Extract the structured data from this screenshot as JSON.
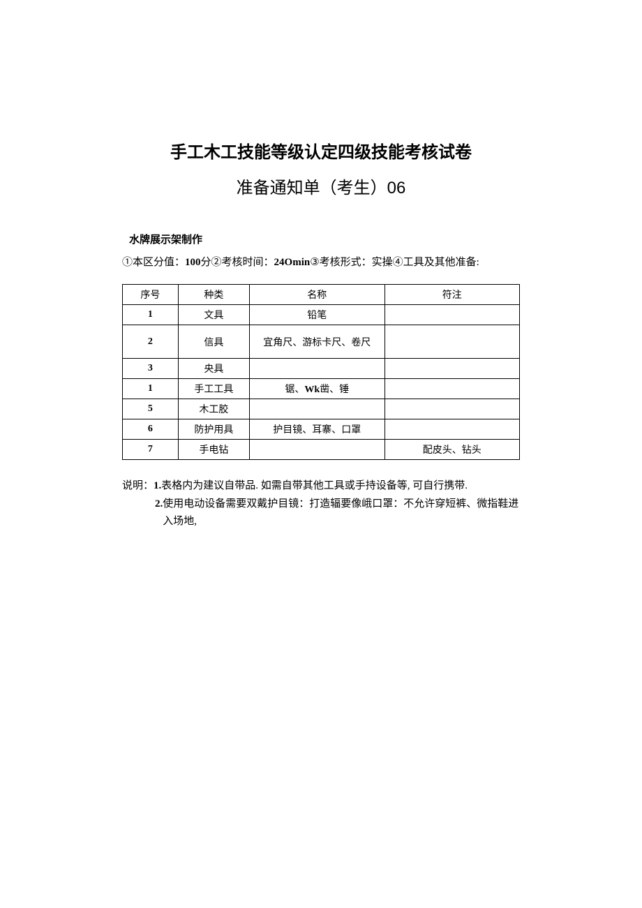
{
  "title": {
    "line1": "手工木工技能等级认定四级技能考核试卷",
    "line2": "准备通知单（考生）06"
  },
  "section_header": "水牌展示架制作",
  "info": {
    "part1": "①本区分值：",
    "score": "100",
    "part2": "分②考核时间：",
    "duration": "24Omin",
    "part3": "③考核形式：实操④工具及其他准备:"
  },
  "table": {
    "headers": [
      "序号",
      "种类",
      "名称",
      "符注"
    ],
    "rows": [
      {
        "seq": "1",
        "type": "文具",
        "name": "铅笔",
        "note": "",
        "seq_bold": true,
        "tall": false
      },
      {
        "seq": "2",
        "type": "信具",
        "name": "宜角尺、游标卡尺、卷尺",
        "note": "",
        "seq_bold": true,
        "tall": true
      },
      {
        "seq": "3",
        "type": "央具",
        "name": "",
        "note": "",
        "seq_bold": true,
        "tall": false
      },
      {
        "seq": "1",
        "type": "手工工具",
        "name": "锯、Wk凿、锤",
        "note": "",
        "seq_bold": true,
        "tall": false
      },
      {
        "seq": "5",
        "type": "木工胶",
        "name": "",
        "note": "",
        "seq_bold": true,
        "tall": false
      },
      {
        "seq": "6",
        "type": "防护用具",
        "name": "护目镜、耳寨、口罩",
        "note": "",
        "seq_bold": true,
        "tall": false
      },
      {
        "seq": "7",
        "type": "手电钻",
        "name": "",
        "note": "配皮头、钻头",
        "seq_bold": true,
        "tall": false
      }
    ]
  },
  "notes": {
    "label": "说明：",
    "item1_num": "1.",
    "item1_text": " 表格内为建议自带品. 如需自带其他工具或手持设备等, 可自行携带.",
    "item2_num": "2.",
    "item2_text": "使用电动设备需要双戴护目镜：打造辐要像峨口罩：不允许穿短裤、微指鞋进入场地,"
  },
  "styles": {
    "bg_color": "#ffffff",
    "text_color": "#000000",
    "border_color": "#000000",
    "title_fontsize": 24,
    "body_fontsize": 15,
    "table_fontsize": 14
  }
}
